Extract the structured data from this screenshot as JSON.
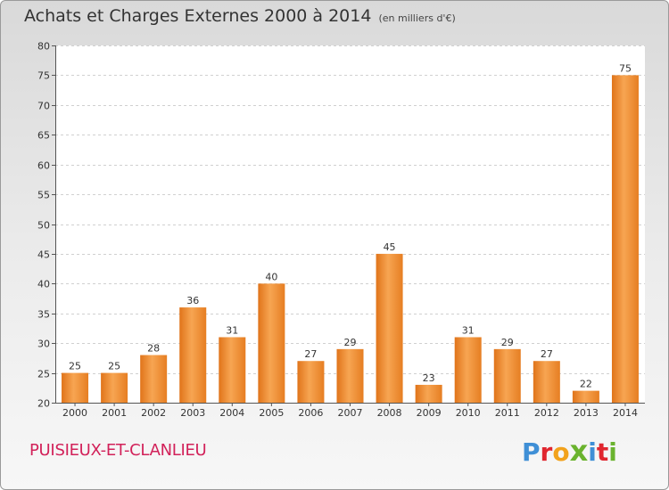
{
  "title": "Achats et Charges Externes 2000 à 2014",
  "unit": "(en milliers d'€)",
  "commune": "PUISIEUX-ET-CLANLIEU",
  "logo": {
    "letters": [
      "P",
      "r",
      "o",
      "x",
      "i",
      "t",
      "i"
    ],
    "colors": [
      "#3f8fd6",
      "#e0262f",
      "#f2a21c",
      "#6ab32e",
      "#3f8fd6",
      "#e0262f",
      "#6ab32e"
    ]
  },
  "chart_data": {
    "type": "bar",
    "categories": [
      "2000",
      "2001",
      "2002",
      "2003",
      "2004",
      "2005",
      "2006",
      "2007",
      "2008",
      "2009",
      "2010",
      "2011",
      "2012",
      "2013",
      "2014"
    ],
    "values": [
      25,
      25,
      28,
      36,
      31,
      40,
      27,
      29,
      45,
      23,
      31,
      29,
      27,
      22,
      75
    ],
    "ylim": [
      20,
      80
    ],
    "yticks": [
      20,
      25,
      30,
      35,
      40,
      45,
      50,
      55,
      60,
      65,
      70,
      75,
      80
    ],
    "grid": true,
    "bar_color": "#ee8a2e"
  }
}
